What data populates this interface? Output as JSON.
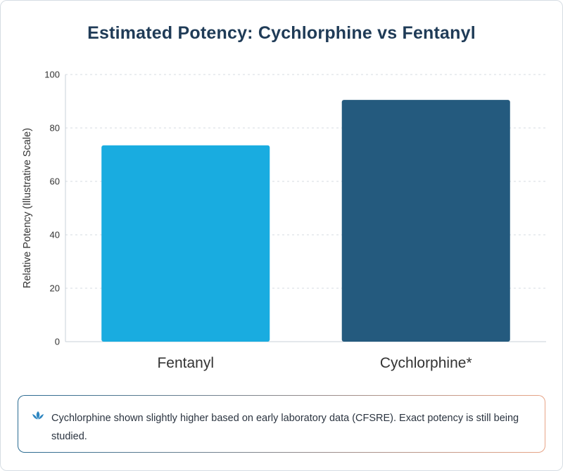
{
  "title": "Estimated Potency: Cychlorphine vs Fentanyl",
  "note": {
    "icon": "lotus-icon",
    "text": "Cychlorphine shown slightly higher based on early laboratory data (CFSRE). Exact potency is still being studied."
  },
  "colors": {
    "title": "#1f3b57",
    "grid": "#d4dbe1",
    "axis_text": "#333333"
  },
  "chart_data": {
    "type": "bar",
    "categories": [
      "Fentanyl",
      "Cychlorphine*"
    ],
    "values": [
      73.5,
      90.5
    ],
    "bar_colors": [
      "#19ace0",
      "#245a7e"
    ],
    "title": "Estimated Potency: Cychlorphine vs Fentanyl",
    "xlabel": "",
    "ylabel": "Relative Potency (Illustrative Scale)",
    "ylim": [
      0,
      100
    ],
    "yticks": [
      0,
      20,
      40,
      60,
      80,
      100
    ],
    "grid": true,
    "legend": "none"
  }
}
